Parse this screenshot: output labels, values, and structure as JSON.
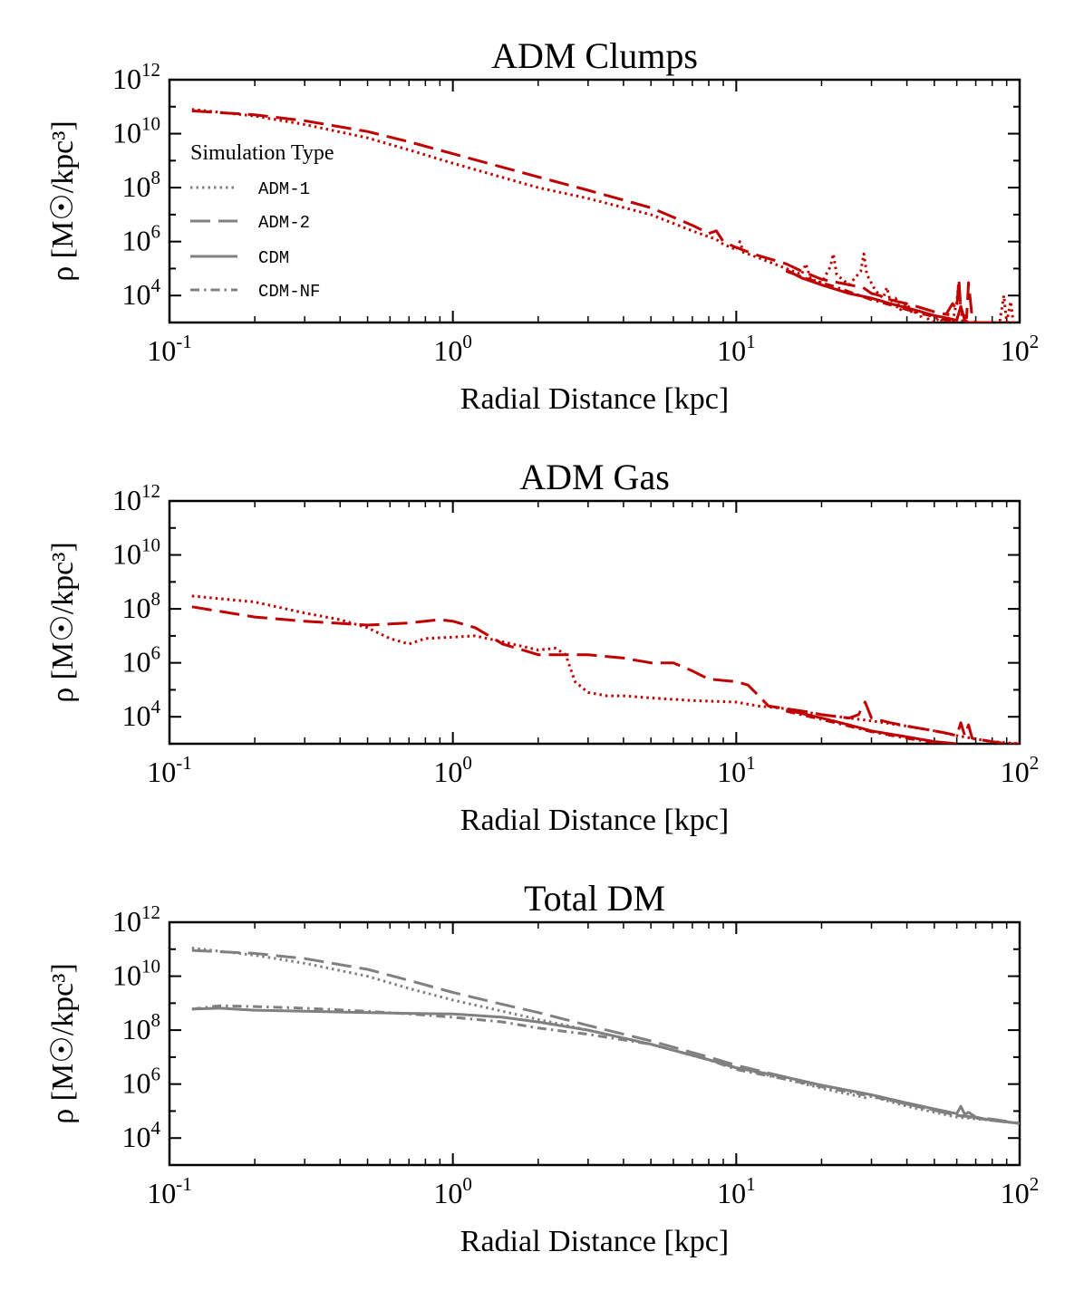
{
  "chart_data": [
    {
      "type": "line",
      "title": "ADM Clumps",
      "xlabel": "Radial Distance [kpc]",
      "ylabel": "ρ [M☉/kpc³]",
      "xscale": "log",
      "yscale": "log",
      "xlim": [
        0.1,
        100
      ],
      "ylim": [
        1000,
        1000000000000
      ],
      "color": "#c00000",
      "legend": {
        "title": "Simulation Type",
        "location": "upper-left",
        "color": "#808080",
        "entries": [
          {
            "label": "ADM-1",
            "style": "dotted"
          },
          {
            "label": "ADM-2",
            "style": "dashed"
          },
          {
            "label": "CDM",
            "style": "solid"
          },
          {
            "label": "CDM-NF",
            "style": "dashdot"
          }
        ]
      },
      "series": [
        {
          "name": "ADM-1",
          "style": "dotted",
          "color": "#c00000",
          "x": [
            0.12,
            0.2,
            0.3,
            0.5,
            0.7,
            1,
            2,
            3,
            5,
            7,
            8,
            8.5,
            9,
            10,
            10.3,
            10.6,
            12,
            15,
            17,
            17.6,
            18.3,
            20,
            21.5,
            22,
            22.6,
            25,
            27.5,
            28.2,
            28.9,
            31,
            33,
            34,
            35,
            36.5,
            38,
            40,
            42,
            44,
            45,
            46,
            48,
            50,
            52,
            54,
            56,
            58,
            60,
            61,
            62,
            63,
            66,
            70,
            75,
            80,
            85,
            88,
            90,
            93,
            95
          ],
          "y": [
            80000000000,
            45000000000,
            22000000000,
            7000000000,
            2500000000,
            800000000,
            100000000,
            40000000,
            10000000,
            2500000,
            1500000,
            1200000,
            800000,
            500000,
            1000000,
            400000,
            250000,
            100000,
            60000,
            150000,
            40000,
            30000,
            120000,
            350000,
            60000,
            25000,
            80000,
            350000,
            60000,
            15000,
            8000,
            20000,
            6000,
            8000,
            3000,
            5000,
            2000,
            3000,
            1500,
            2000,
            1200,
            1000,
            1500,
            1000,
            2000,
            1000,
            6000,
            30000,
            3000,
            1000,
            1000,
            1000,
            1000,
            1000,
            1000,
            10000,
            1000,
            6000,
            1000
          ]
        },
        {
          "name": "ADM-2",
          "style": "dashed",
          "color": "#c00000",
          "x": [
            0.12,
            0.2,
            0.3,
            0.5,
            0.7,
            1,
            2,
            3,
            5,
            7,
            8,
            8.5,
            9,
            10,
            12,
            15,
            17,
            20,
            25,
            28,
            30,
            32,
            35,
            37,
            40,
            45,
            50,
            55,
            58,
            60,
            61,
            62,
            63,
            65,
            66,
            68,
            70,
            75,
            80
          ],
          "y": [
            70000000000,
            50000000000,
            30000000000,
            12000000000,
            5000000000,
            1800000000,
            250000000,
            80000000,
            18000000,
            4000000,
            2000000,
            2500000,
            1000000,
            600000,
            300000,
            150000,
            80000,
            40000,
            25000,
            20000,
            12000,
            10000,
            7000,
            6000,
            5000,
            3500,
            2500,
            2000,
            5000,
            3000,
            40000,
            3000,
            2000,
            1500,
            30000,
            1500,
            1000,
            1000,
            1000
          ]
        },
        {
          "name": "CDM",
          "style": "solid",
          "color": "#c00000",
          "x": [
            15,
            17,
            20,
            25,
            30,
            35,
            40,
            45,
            50,
            55,
            60,
            62,
            64,
            66,
            70
          ],
          "y": [
            90000,
            45000,
            25000,
            12000,
            8000,
            5000,
            3500,
            2500,
            1800,
            1500,
            1200,
            4000,
            1200,
            1000,
            1000
          ]
        },
        {
          "name": "CDM-NF",
          "style": "dashdot",
          "color": "#c00000",
          "x": [
            15,
            18,
            22,
            26,
            30,
            35,
            40,
            45,
            50,
            55,
            60
          ],
          "y": [
            80000,
            40000,
            22000,
            12000,
            7000,
            4500,
            3000,
            2200,
            1600,
            1200,
            1000
          ]
        }
      ]
    },
    {
      "type": "line",
      "title": "ADM Gas",
      "xlabel": "Radial Distance [kpc]",
      "ylabel": "ρ [M☉/kpc³]",
      "xscale": "log",
      "yscale": "log",
      "xlim": [
        0.1,
        100
      ],
      "ylim": [
        1000,
        1000000000000
      ],
      "color": "#c00000",
      "series": [
        {
          "name": "ADM-1",
          "style": "dotted",
          "color": "#c00000",
          "x": [
            0.12,
            0.2,
            0.3,
            0.4,
            0.5,
            0.6,
            0.7,
            0.8,
            1,
            1.2,
            1.5,
            2,
            2.3,
            2.5,
            2.7,
            3,
            3.5,
            4,
            5,
            7,
            10,
            12,
            15,
            20,
            25,
            30,
            40,
            50,
            60,
            70,
            80,
            100
          ],
          "y": [
            300000000,
            180000000,
            70000000,
            40000000,
            20000000,
            8000000,
            5000000,
            8000000,
            9000000,
            10000000,
            6000000,
            3000000,
            3500000,
            2000000,
            200000,
            80000,
            60000,
            60000,
            50000,
            40000,
            35000,
            25000,
            20000,
            12000,
            9000,
            7000,
            4500,
            3000,
            2000,
            1500,
            1200,
            1000
          ]
        },
        {
          "name": "ADM-2",
          "style": "dashed",
          "color": "#c00000",
          "x": [
            0.12,
            0.2,
            0.3,
            0.5,
            0.7,
            0.9,
            1,
            1.2,
            1.5,
            2,
            3,
            4,
            5,
            6,
            7,
            8,
            10,
            11,
            12,
            13,
            15,
            18,
            20,
            25,
            27,
            28.5,
            30,
            35,
            40,
            50,
            55,
            60,
            62,
            64,
            66,
            68,
            70,
            80,
            90,
            100
          ],
          "y": [
            120000000,
            50000000,
            35000000,
            25000000,
            30000000,
            40000000,
            35000000,
            20000000,
            5000000,
            2000000,
            2000000,
            1500000,
            1000000,
            1000000,
            500000,
            250000,
            200000,
            150000,
            60000,
            25000,
            20000,
            15000,
            12000,
            9000,
            12000,
            35000,
            9000,
            6000,
            4500,
            3000,
            2500,
            2000,
            6000,
            2000,
            5000,
            1600,
            1500,
            1200,
            1000,
            1000
          ]
        },
        {
          "name": "CDM",
          "style": "solid",
          "color": "#c00000",
          "x": [
            15,
            20,
            25,
            30,
            40,
            50,
            60
          ],
          "y": [
            18000,
            9000,
            5000,
            3000,
            1800,
            1200,
            1000
          ]
        },
        {
          "name": "CDM-NF",
          "style": "dashdot",
          "color": "#c00000",
          "x": [
            15,
            20,
            25,
            30,
            40,
            50
          ],
          "y": [
            16000,
            8000,
            4500,
            2800,
            1600,
            1100
          ]
        }
      ]
    },
    {
      "type": "line",
      "title": "Total DM",
      "xlabel": "Radial Distance [kpc]",
      "ylabel": "ρ [M☉/kpc³]",
      "xscale": "log",
      "yscale": "log",
      "xlim": [
        0.1,
        100
      ],
      "ylim": [
        1000,
        1000000000000
      ],
      "color": "#808080",
      "series": [
        {
          "name": "ADM-1",
          "style": "dotted",
          "color": "#808080",
          "x": [
            0.12,
            0.2,
            0.3,
            0.5,
            0.7,
            1,
            1.5,
            2,
            3,
            5,
            8,
            10,
            15,
            20,
            29,
            30,
            40,
            60,
            80,
            100
          ],
          "y": [
            110000000000,
            60000000000,
            30000000000,
            10000000000,
            3500000000,
            1300000000,
            500000000,
            250000000,
            100000000,
            30000000,
            8000000,
            4000000,
            1500000,
            700000,
            300000,
            350000,
            150000,
            60000,
            45000,
            35000
          ]
        },
        {
          "name": "ADM-2",
          "style": "dashed",
          "color": "#808080",
          "x": [
            0.12,
            0.2,
            0.3,
            0.5,
            0.7,
            1,
            1.5,
            2,
            3,
            5,
            8,
            10,
            15,
            20,
            30,
            40,
            60,
            80,
            100
          ],
          "y": [
            90000000000,
            70000000000,
            45000000000,
            18000000000,
            7000000000,
            2500000000,
            900000000,
            450000000,
            150000000,
            40000000,
            10000000,
            5000000,
            1800000,
            900000,
            400000,
            180000,
            70000,
            50000,
            35000
          ]
        },
        {
          "name": "CDM",
          "style": "solid",
          "color": "#808080",
          "x": [
            0.12,
            0.15,
            0.2,
            0.3,
            0.5,
            0.7,
            1,
            1.5,
            2,
            3,
            5,
            8,
            10,
            15,
            20,
            30,
            40,
            50,
            60,
            62,
            64,
            66,
            70,
            80,
            100
          ],
          "y": [
            600000000,
            650000000,
            550000000,
            500000000,
            450000000,
            420000000,
            400000000,
            300000000,
            200000000,
            100000000,
            30000000,
            8000000,
            4000000,
            1800000,
            900000,
            400000,
            200000,
            120000,
            80000,
            150000,
            75000,
            90000,
            60000,
            45000,
            35000
          ]
        },
        {
          "name": "CDM-NF",
          "style": "dashdot",
          "color": "#808080",
          "x": [
            0.12,
            0.15,
            0.2,
            0.3,
            0.5,
            0.7,
            1,
            1.5,
            2,
            3,
            5,
            8,
            10,
            15,
            20,
            30,
            40,
            60,
            80,
            100
          ],
          "y": [
            600000000,
            800000000,
            750000000,
            650000000,
            500000000,
            400000000,
            300000000,
            200000000,
            120000000,
            70000000,
            30000000,
            8000000,
            3500000,
            1500000,
            800000,
            350000,
            180000,
            70000,
            45000,
            35000
          ]
        }
      ]
    }
  ]
}
